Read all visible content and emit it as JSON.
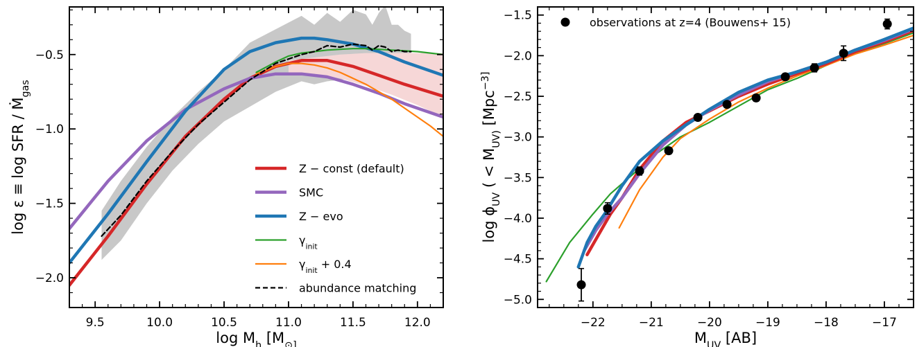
{
  "chart_data": [
    {
      "type": "line",
      "xlabel": "log  M_h  [M_⊙]",
      "ylabel": "log  ε  ≡  log  SFR / Ṁ_gas",
      "xlim": [
        9.3,
        12.2
      ],
      "ylim": [
        -2.2,
        -0.18
      ],
      "xticks": [
        9.5,
        10.0,
        10.5,
        11.0,
        11.5,
        12.0
      ],
      "xtick_labels": [
        "9.5",
        "10.0",
        "10.5",
        "11.0",
        "11.5",
        "12.0"
      ],
      "yticks": [
        -2.0,
        -1.5,
        -1.0,
        -0.5
      ],
      "ytick_labels": [
        "−2.0",
        "−1.5",
        "−1.0",
        "−0.5"
      ],
      "bands": [
        {
          "name": "abundance-matching-scatter",
          "color": "#c8c8c8",
          "x": [
            9.55,
            9.7,
            9.9,
            10.1,
            10.3,
            10.5,
            10.7,
            10.9,
            11.1,
            11.2,
            11.3,
            11.4,
            11.5,
            11.6,
            11.65,
            11.7,
            11.75,
            11.8,
            11.85,
            11.9,
            11.95
          ],
          "upper": [
            -1.55,
            -1.35,
            -1.12,
            -0.92,
            -0.75,
            -0.6,
            -0.42,
            -0.33,
            -0.24,
            -0.3,
            -0.22,
            -0.28,
            -0.2,
            -0.23,
            -0.3,
            -0.22,
            -0.17,
            -0.3,
            -0.3,
            -0.34,
            -0.36
          ],
          "lower": [
            -1.88,
            -1.75,
            -1.5,
            -1.28,
            -1.1,
            -0.95,
            -0.85,
            -0.75,
            -0.68,
            -0.7,
            -0.68,
            -0.67,
            -0.66,
            -0.63,
            -0.6,
            -0.62,
            -0.64,
            -0.6,
            -0.6,
            -0.65,
            -0.66
          ]
        },
        {
          "name": "z-const-shade",
          "color": "#f6d7d7",
          "x": [
            11.0,
            11.2,
            11.4,
            11.6,
            11.8,
            12.0,
            12.2
          ],
          "upper": [
            -0.54,
            -0.52,
            -0.5,
            -0.49,
            -0.49,
            -0.49,
            -0.49
          ],
          "lower": [
            -0.63,
            -0.63,
            -0.66,
            -0.71,
            -0.77,
            -0.84,
            -0.92
          ]
        }
      ],
      "series": [
        {
          "name": "Z − const  (default)",
          "color": "#d62728",
          "width": 4.5,
          "x": [
            9.3,
            9.6,
            9.9,
            10.2,
            10.5,
            10.7,
            10.9,
            11.1,
            11.3,
            11.5,
            11.7,
            11.9,
            12.2
          ],
          "y": [
            -2.05,
            -1.72,
            -1.37,
            -1.05,
            -0.8,
            -0.66,
            -0.58,
            -0.54,
            -0.54,
            -0.58,
            -0.64,
            -0.7,
            -0.78
          ]
        },
        {
          "name": "SMC",
          "color": "#9467bd",
          "width": 4.5,
          "x": [
            9.3,
            9.6,
            9.9,
            10.2,
            10.5,
            10.7,
            10.9,
            11.1,
            11.3,
            11.5,
            11.7,
            11.9,
            12.2
          ],
          "y": [
            -1.67,
            -1.35,
            -1.08,
            -0.87,
            -0.73,
            -0.66,
            -0.63,
            -0.63,
            -0.65,
            -0.7,
            -0.76,
            -0.83,
            -0.92
          ]
        },
        {
          "name": "Z − evo",
          "color": "#1f77b4",
          "width": 4.5,
          "x": [
            9.3,
            9.6,
            9.9,
            10.2,
            10.5,
            10.7,
            10.9,
            11.1,
            11.2,
            11.3,
            11.5,
            11.7,
            11.9,
            12.2
          ],
          "y": [
            -1.9,
            -1.57,
            -1.22,
            -0.88,
            -0.6,
            -0.48,
            -0.42,
            -0.39,
            -0.39,
            -0.4,
            -0.43,
            -0.48,
            -0.55,
            -0.64
          ]
        },
        {
          "name": "γ_init",
          "color": "#2ca02c",
          "width": 2.2,
          "x": [
            10.75,
            10.9,
            11.0,
            11.1,
            11.2,
            11.3,
            11.4,
            11.5,
            11.6,
            11.7,
            11.8,
            11.9,
            12.0,
            12.1,
            12.2
          ],
          "y": [
            -0.62,
            -0.55,
            -0.51,
            -0.49,
            -0.48,
            -0.47,
            -0.465,
            -0.46,
            -0.46,
            -0.465,
            -0.47,
            -0.475,
            -0.48,
            -0.49,
            -0.5
          ]
        },
        {
          "name": "γ_init + 0.4",
          "color": "#ff7f0e",
          "width": 2.2,
          "x": [
            10.75,
            10.9,
            11.0,
            11.1,
            11.2,
            11.3,
            11.4,
            11.5,
            11.6,
            11.7,
            11.8,
            11.9,
            12.0,
            12.1,
            12.2
          ],
          "y": [
            -0.63,
            -0.58,
            -0.56,
            -0.56,
            -0.57,
            -0.59,
            -0.62,
            -0.66,
            -0.7,
            -0.75,
            -0.8,
            -0.86,
            -0.92,
            -0.98,
            -1.05
          ]
        },
        {
          "name": "abundance matching",
          "color": "#000000",
          "width": 2.2,
          "dash": true,
          "x": [
            9.55,
            9.7,
            9.9,
            10.1,
            10.3,
            10.5,
            10.7,
            10.9,
            11.1,
            11.2,
            11.3,
            11.4,
            11.5,
            11.6,
            11.65,
            11.7,
            11.75,
            11.8,
            11.85,
            11.9,
            11.95
          ],
          "y": [
            -1.72,
            -1.58,
            -1.35,
            -1.15,
            -0.97,
            -0.82,
            -0.67,
            -0.56,
            -0.5,
            -0.48,
            -0.44,
            -0.45,
            -0.43,
            -0.44,
            -0.47,
            -0.44,
            -0.45,
            -0.48,
            -0.47,
            -0.48,
            -0.48
          ]
        }
      ],
      "legend": {
        "position": "lower-right"
      }
    },
    {
      "type": "line",
      "xlabel": "M_UV  [AB]",
      "ylabel": "log  ϕ_UV  ( < M_UV)  [Mpc^−3]",
      "xlim": [
        -22.95,
        -16.5
      ],
      "ylim": [
        -5.1,
        -1.4
      ],
      "xticks": [
        -22,
        -21,
        -20,
        -19,
        -18,
        -17
      ],
      "xtick_labels": [
        "−22",
        "−21",
        "−20",
        "−19",
        "−18",
        "−17"
      ],
      "yticks": [
        -5.0,
        -4.5,
        -4.0,
        -3.5,
        -3.0,
        -2.5,
        -2.0,
        -1.5
      ],
      "ytick_labels": [
        "−5.0",
        "−4.5",
        "−4.0",
        "−3.5",
        "−3.0",
        "−2.5",
        "−2.0",
        "−1.5"
      ],
      "series": [
        {
          "name": "γ_init",
          "color": "#2ca02c",
          "width": 2.2,
          "x": [
            -22.8,
            -22.4,
            -22.0,
            -21.7,
            -21.3,
            -21.0,
            -20.5,
            -20.0,
            -19.5,
            -19.0,
            -18.5,
            -18.0,
            -17.5,
            -17.0,
            -16.5
          ],
          "y": [
            -4.78,
            -4.3,
            -3.95,
            -3.7,
            -3.45,
            -3.25,
            -3.0,
            -2.82,
            -2.62,
            -2.42,
            -2.28,
            -2.12,
            -1.97,
            -1.85,
            -1.72
          ]
        },
        {
          "name": "γ_init + 0.4",
          "color": "#ff7f0e",
          "width": 2.2,
          "x": [
            -21.55,
            -21.2,
            -20.8,
            -20.5,
            -20.0,
            -19.5,
            -19.0,
            -18.5,
            -18.0,
            -17.5,
            -17.0,
            -16.5
          ],
          "y": [
            -4.12,
            -3.65,
            -3.25,
            -3.02,
            -2.78,
            -2.57,
            -2.4,
            -2.25,
            -2.12,
            -1.98,
            -1.87,
            -1.75
          ]
        },
        {
          "name": "Z − const  (default)",
          "color": "#d62728",
          "width": 4.5,
          "x": [
            -22.1,
            -21.9,
            -21.7,
            -21.5,
            -21.2,
            -20.8,
            -20.4,
            -20.0,
            -19.5,
            -19.0,
            -18.5,
            -18.0,
            -17.5,
            -17.0,
            -16.5
          ],
          "y": [
            -4.45,
            -4.2,
            -3.95,
            -3.75,
            -3.4,
            -3.05,
            -2.82,
            -2.68,
            -2.5,
            -2.35,
            -2.22,
            -2.1,
            -1.95,
            -1.83,
            -1.69
          ]
        },
        {
          "name": "SMC",
          "color": "#9467bd",
          "width": 4.5,
          "x": [
            -22.15,
            -21.95,
            -21.75,
            -21.5,
            -21.2,
            -20.8,
            -20.4,
            -20.0,
            -19.5,
            -19.0,
            -18.5,
            -18.0,
            -17.5,
            -17.0,
            -16.5
          ],
          "y": [
            -4.4,
            -4.15,
            -3.95,
            -3.75,
            -3.45,
            -3.1,
            -2.85,
            -2.67,
            -2.48,
            -2.32,
            -2.2,
            -2.08,
            -1.93,
            -1.81,
            -1.67
          ]
        },
        {
          "name": "Z − evo",
          "color": "#1f77b4",
          "width": 4.5,
          "x": [
            -22.25,
            -22.1,
            -21.95,
            -21.8,
            -21.5,
            -21.2,
            -20.8,
            -20.4,
            -20.0,
            -19.5,
            -19.0,
            -18.5,
            -18.0,
            -17.5,
            -17.0,
            -16.5
          ],
          "y": [
            -4.6,
            -4.3,
            -4.1,
            -3.95,
            -3.6,
            -3.3,
            -3.05,
            -2.85,
            -2.66,
            -2.45,
            -2.3,
            -2.2,
            -2.08,
            -1.93,
            -1.8,
            -1.66
          ]
        }
      ],
      "points": {
        "name": "observations at z=4 (Bouwens+ 15)",
        "color": "#000000",
        "x": [
          -22.2,
          -21.75,
          -21.2,
          -20.7,
          -20.2,
          -19.7,
          -19.2,
          -18.7,
          -18.2,
          -17.7,
          -16.95
        ],
        "y": [
          -4.82,
          -3.88,
          -3.42,
          -3.17,
          -2.76,
          -2.6,
          -2.52,
          -2.26,
          -2.15,
          -1.97,
          -1.61
        ],
        "yerr": [
          0.2,
          0.07,
          0.05,
          0.04,
          0.03,
          0.03,
          0.04,
          0.04,
          0.05,
          0.09,
          0.06
        ]
      },
      "legend": {
        "position": "top"
      }
    }
  ]
}
